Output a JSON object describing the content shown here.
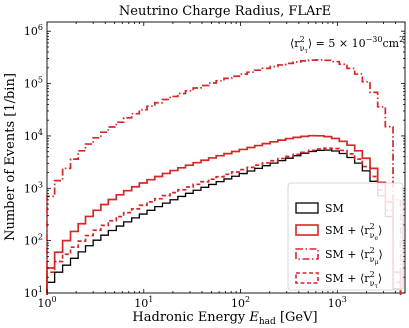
{
  "chart_data": {
    "type": "line",
    "drawstyle": "steps-post",
    "title": "Neutrino Charge Radius,  FLArE",
    "annotation_prefix": "⟨r",
    "annotation_text": "⟨r²ντ⟩ = 5 × 10⁻³⁰cm²",
    "annotation_main": "⟩ = 5 × 10",
    "annotation_sub": "ν",
    "annotation_subsub": "τ",
    "annotation_sup": "2",
    "annotation_exp": "−30",
    "annotation_unit": "cm",
    "annotation_unit_sup": "2",
    "xlabel": "Hadronic Energy E_had [GeV]",
    "xlabel_main": "Hadronic Energy ",
    "xlabel_var": "E",
    "xlabel_var_sub": "had",
    "xlabel_unit": " [GeV]",
    "ylabel": "Number of Events [1/bin]",
    "xscale": "log",
    "yscale": "log",
    "xlim": [
      1,
      5000
    ],
    "ylim": [
      10,
      1500000
    ],
    "x_ticks": [
      {
        "value": 1,
        "base": "10",
        "exp": "0"
      },
      {
        "value": 10,
        "base": "10",
        "exp": "1"
      },
      {
        "value": 100,
        "base": "10",
        "exp": "2"
      },
      {
        "value": 1000,
        "base": "10",
        "exp": "3"
      }
    ],
    "y_ticks": [
      {
        "value": 10,
        "base": "10",
        "exp": "1"
      },
      {
        "value": 100,
        "base": "10",
        "exp": "2"
      },
      {
        "value": 1000,
        "base": "10",
        "exp": "3"
      },
      {
        "value": 10000,
        "base": "10",
        "exp": "4"
      },
      {
        "value": 100000,
        "base": "10",
        "exp": "5"
      },
      {
        "value": 1000000,
        "base": "10",
        "exp": "6"
      }
    ],
    "bin_edges": [
      1,
      1.2,
      1.45,
      1.75,
      2.1,
      2.5,
      3,
      3.6,
      4.3,
      5.2,
      6.2,
      7.5,
      9,
      10.8,
      13,
      15.6,
      18.7,
      22.5,
      27,
      32.4,
      39,
      46.8,
      56,
      67.4,
      81,
      97,
      117,
      140,
      168,
      202,
      243,
      292,
      350,
      420,
      505,
      606,
      727,
      873,
      1048,
      1258,
      1510,
      1812,
      2175,
      2610,
      3130,
      3760,
      4500
    ],
    "series": [
      {
        "name": "SM",
        "color": "#000000",
        "dash": "solid",
        "values": [
          16,
          25,
          34,
          46,
          61,
          80,
          102,
          127,
          156,
          190,
          228,
          272,
          322,
          380,
          446,
          520,
          604,
          698,
          802,
          918,
          1045,
          1185,
          1340,
          1510,
          1700,
          1910,
          2140,
          2400,
          2700,
          3020,
          3370,
          3760,
          4190,
          4680,
          5050,
          5300,
          5350,
          5150,
          4620,
          3870,
          3020,
          2150,
          1360,
          720,
          290,
          12
        ]
      },
      {
        "name": "SM + ⟨r²νe⟩",
        "label_main": "SM + ⟨r",
        "label_sup": "2",
        "label_sub": "ν",
        "label_subsub": "e",
        "label_close": "⟩",
        "color": "#d62728",
        "dash": "solid",
        "values": [
          30,
          60,
          100,
          150,
          210,
          290,
          380,
          490,
          610,
          750,
          900,
          1070,
          1260,
          1460,
          1680,
          1920,
          2180,
          2460,
          2760,
          3080,
          3430,
          3800,
          4190,
          4600,
          5050,
          5520,
          6020,
          6550,
          7120,
          7720,
          8330,
          8900,
          9400,
          9800,
          10100,
          10050,
          9700,
          8950,
          7900,
          6650,
          5200,
          3750,
          2400,
          1300,
          550,
          25
        ]
      },
      {
        "name": "SM + ⟨r²νμ⟩",
        "label_main": "SM + ⟨r",
        "label_sup": "2",
        "label_sub": "ν",
        "label_subsub": "μ",
        "label_close": "⟩",
        "color": "#d62728",
        "dash": "dashdot",
        "values": [
          700,
          1400,
          2400,
          3600,
          5200,
          7000,
          9200,
          11800,
          14800,
          18300,
          22200,
          26600,
          31600,
          37000,
          43000,
          49600,
          56800,
          64600,
          73000,
          82200,
          92000,
          102500,
          113500,
          125500,
          138000,
          151500,
          165000,
          180000,
          195000,
          211000,
          227000,
          243000,
          258000,
          271000,
          280000,
          284000,
          278000,
          262000,
          234000,
          195000,
          152000,
          108000,
          68000,
          36000,
          15000,
          600
        ]
      },
      {
        "name": "SM + ⟨r²ντ⟩",
        "label_main": "SM + ⟨r",
        "label_sup": "2",
        "label_sub": "ν",
        "label_subsub": "τ",
        "label_close": "⟩",
        "color": "#d62728",
        "dash": "dashed",
        "values": [
          25,
          40,
          55,
          75,
          98,
          125,
          158,
          196,
          240,
          288,
          343,
          405,
          474,
          550,
          633,
          725,
          826,
          937,
          1058,
          1190,
          1335,
          1492,
          1663,
          1848,
          2050,
          2270,
          2510,
          2770,
          3050,
          3360,
          3700,
          4060,
          4450,
          4870,
          5300,
          5640,
          5820,
          5720,
          5280,
          4550,
          3600,
          2600,
          1680,
          920,
          380,
          16
        ]
      }
    ],
    "legend_position": "lower right",
    "grid": false
  }
}
